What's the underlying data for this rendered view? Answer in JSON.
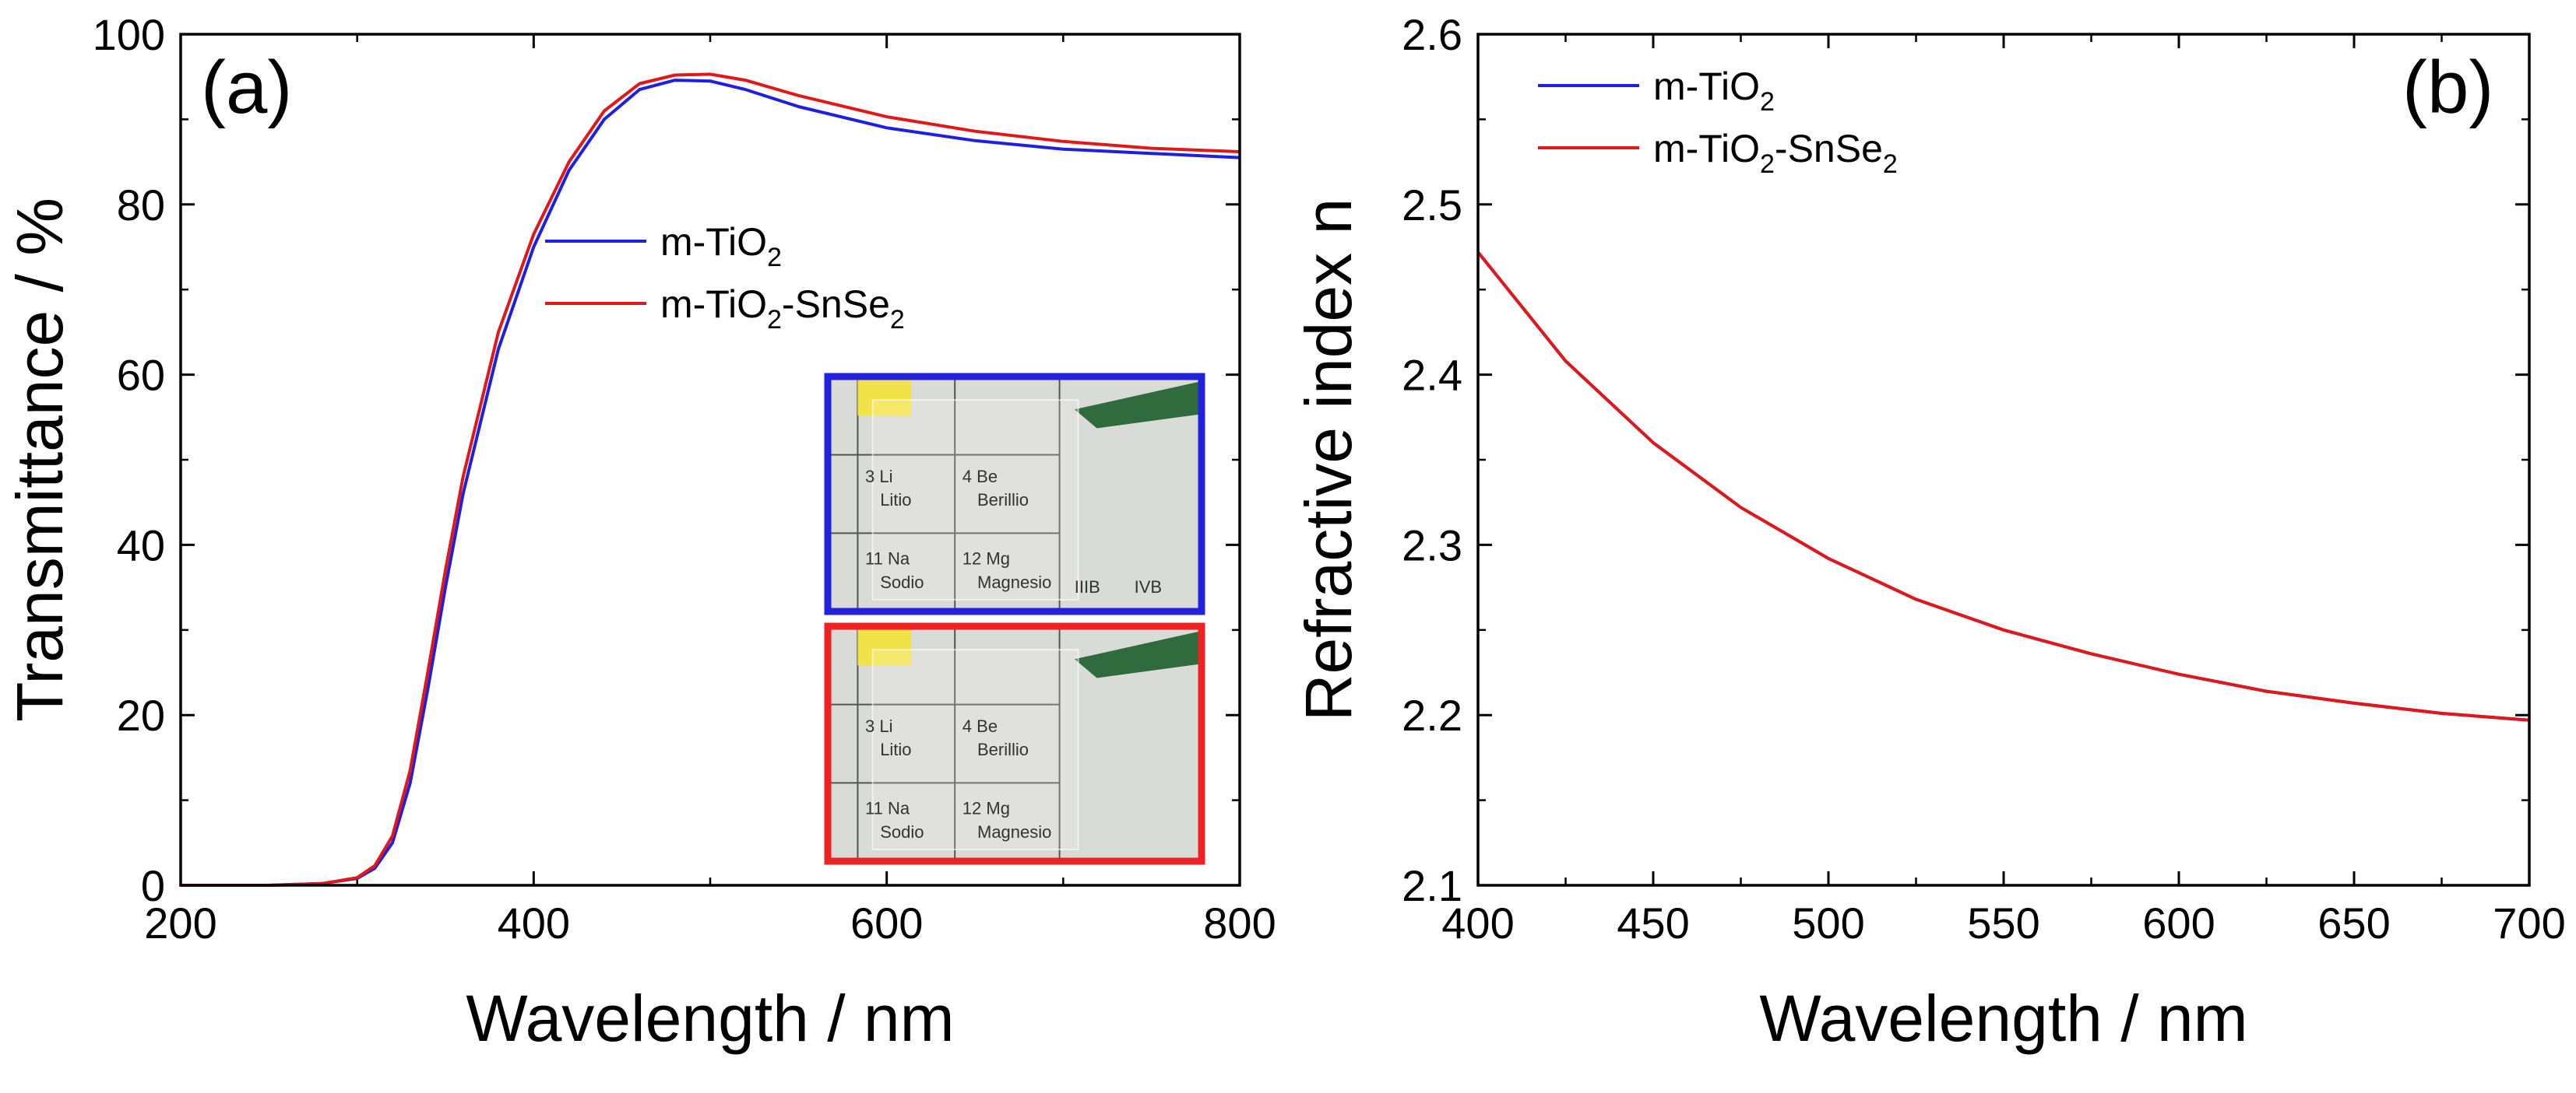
{
  "chart_data": [
    {
      "panel": "(a)",
      "type": "line",
      "xlabel": "Wavelength / nm",
      "ylabel": "Transmittance / %",
      "xlim": [
        200,
        800
      ],
      "ylim": [
        0,
        100
      ],
      "xticks": [
        "200",
        "400",
        "600",
        "800"
      ],
      "yticks": [
        "0",
        "20",
        "40",
        "60",
        "80",
        "100"
      ],
      "legend": {
        "position": "middle-left",
        "entries": [
          {
            "main": "m-TiO",
            "sub": "2",
            "tail": ""
          },
          {
            "main": "m-TiO",
            "sub": "2",
            "tail": "-SnSe",
            "sub2": "2"
          }
        ]
      },
      "series": [
        {
          "name": "m-TiO2",
          "color": "#1f1fe0",
          "x": [
            200,
            250,
            280,
            300,
            310,
            320,
            330,
            340,
            350,
            360,
            380,
            400,
            420,
            440,
            460,
            480,
            500,
            520,
            550,
            600,
            650,
            700,
            750,
            800
          ],
          "y": [
            0,
            0,
            0.2,
            0.8,
            2,
            5,
            12,
            23,
            35,
            46,
            63,
            75,
            84,
            90,
            93.5,
            94.6,
            94.5,
            93.5,
            91.5,
            89,
            87.5,
            86.5,
            86,
            85.5
          ]
        },
        {
          "name": "m-TiO2-SnSe2",
          "color": "#e01818",
          "x": [
            200,
            250,
            280,
            300,
            310,
            320,
            330,
            340,
            350,
            360,
            380,
            400,
            420,
            440,
            460,
            480,
            500,
            520,
            550,
            600,
            650,
            700,
            750,
            800
          ],
          "y": [
            0,
            0,
            0.2,
            0.9,
            2.3,
            5.8,
            13.5,
            25,
            37,
            48,
            65,
            76.5,
            85,
            91,
            94.2,
            95.2,
            95.3,
            94.6,
            92.8,
            90.3,
            88.6,
            87.4,
            86.6,
            86.2
          ]
        }
      ],
      "insets": [
        {
          "border_color": "#2222dd",
          "labels": [
            "3 Li",
            "4 Be",
            "Litio",
            "Berillio",
            "11 Na",
            "12 Mg",
            "Sodio",
            "Magnesio",
            "IIIB",
            "IVB"
          ]
        },
        {
          "border_color": "#ee2222",
          "labels": [
            "3 Li",
            "4 Be",
            "Litio",
            "Berillio",
            "11 Na",
            "12 Mg",
            "Sodio",
            "Magnesio"
          ]
        }
      ]
    },
    {
      "panel": "(b)",
      "type": "line",
      "xlabel": "Wavelength / nm",
      "ylabel": "Refractive index n",
      "xlim": [
        400,
        700
      ],
      "ylim": [
        2.1,
        2.6
      ],
      "xticks": [
        "400",
        "450",
        "500",
        "550",
        "600",
        "650",
        "700"
      ],
      "yticks": [
        "2.1",
        "2.2",
        "2.3",
        "2.4",
        "2.5",
        "2.6"
      ],
      "legend": {
        "position": "top-left",
        "entries": [
          {
            "main": "m-TiO",
            "sub": "2",
            "tail": ""
          },
          {
            "main": "m-TiO",
            "sub": "2",
            "tail": "-SnSe",
            "sub2": "2"
          }
        ]
      },
      "series": [
        {
          "name": "m-TiO2",
          "color": "#1f1fe0",
          "x": [
            400,
            425,
            450,
            475,
            500,
            525,
            550,
            575,
            600,
            625,
            650,
            675,
            700
          ],
          "y": [
            2.472,
            2.408,
            2.36,
            2.322,
            2.292,
            2.268,
            2.25,
            2.236,
            2.224,
            2.214,
            2.207,
            2.201,
            2.197
          ]
        },
        {
          "name": "m-TiO2-SnSe2",
          "color": "#e01818",
          "x": [
            400,
            425,
            450,
            475,
            500,
            525,
            550,
            575,
            600,
            625,
            650,
            675,
            700
          ],
          "y": [
            2.472,
            2.408,
            2.36,
            2.322,
            2.292,
            2.268,
            2.25,
            2.236,
            2.224,
            2.214,
            2.207,
            2.201,
            2.197
          ]
        }
      ]
    }
  ]
}
